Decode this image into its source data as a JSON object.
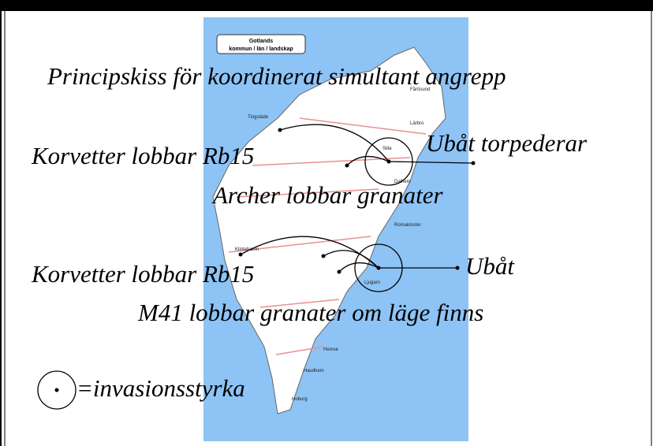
{
  "title": "Principskiss för koordinerat simultant angrepp",
  "map": {
    "header": "Gotlands",
    "subheader": "kommun / län / landskap",
    "places": [
      "Tingstäde",
      "Lärbro",
      "Fårösund",
      "Slite",
      "Dalhem",
      "Romakloster",
      "Klintehamn",
      "Ljugarn",
      "Hemse",
      "Havdhem",
      "Hoburg"
    ]
  },
  "annotations": [
    "Korvetter lobbar Rb15",
    "Ubåt torpederar",
    "Archer lobbar granater",
    "Korvetter lobbar Rb15",
    "Ubåt",
    "M41 lobbar granater om läge finns"
  ],
  "legend": "=invasionsstyrka"
}
